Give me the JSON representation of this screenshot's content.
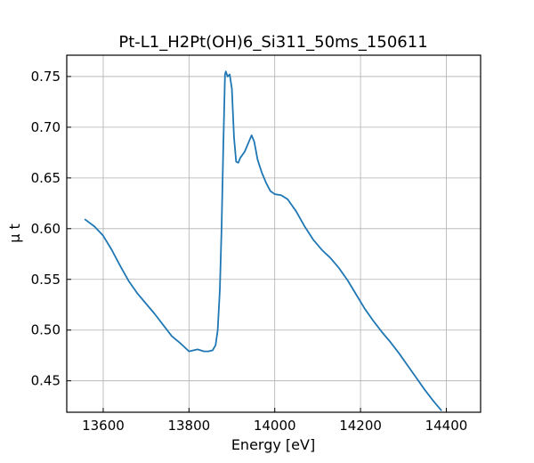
{
  "chart_data": {
    "type": "line",
    "title": "Pt-L1_H2Pt(OH)6_Si311_50ms_150611",
    "xlabel": "Energy [eV]",
    "ylabel": "μ t",
    "xlim": [
      13515,
      14480
    ],
    "ylim": [
      0.419,
      0.771
    ],
    "x_ticks": [
      13600,
      13800,
      14000,
      14200,
      14400
    ],
    "y_ticks": [
      0.45,
      0.5,
      0.55,
      0.6,
      0.65,
      0.7,
      0.75
    ],
    "x_tick_labels": [
      "13600",
      "13800",
      "14000",
      "14200",
      "14400"
    ],
    "y_tick_labels": [
      "0.45",
      "0.50",
      "0.55",
      "0.60",
      "0.65",
      "0.70",
      "0.75"
    ],
    "grid": true,
    "ticks_direction": "in",
    "series": [
      {
        "color": "#1f77b4",
        "points": [
          [
            13558,
            0.609
          ],
          [
            13580,
            0.602
          ],
          [
            13600,
            0.593
          ],
          [
            13620,
            0.579
          ],
          [
            13640,
            0.563
          ],
          [
            13660,
            0.548
          ],
          [
            13680,
            0.536
          ],
          [
            13700,
            0.526
          ],
          [
            13720,
            0.516
          ],
          [
            13740,
            0.505
          ],
          [
            13760,
            0.494
          ],
          [
            13780,
            0.487
          ],
          [
            13800,
            0.479
          ],
          [
            13820,
            0.481
          ],
          [
            13835,
            0.479
          ],
          [
            13845,
            0.479
          ],
          [
            13855,
            0.48
          ],
          [
            13862,
            0.485
          ],
          [
            13867,
            0.5
          ],
          [
            13872,
            0.54
          ],
          [
            13876,
            0.6
          ],
          [
            13880,
            0.68
          ],
          [
            13884,
            0.752
          ],
          [
            13886,
            0.755
          ],
          [
            13890,
            0.75
          ],
          [
            13895,
            0.752
          ],
          [
            13900,
            0.738
          ],
          [
            13905,
            0.69
          ],
          [
            13910,
            0.666
          ],
          [
            13915,
            0.665
          ],
          [
            13920,
            0.67
          ],
          [
            13930,
            0.676
          ],
          [
            13940,
            0.686
          ],
          [
            13946,
            0.692
          ],
          [
            13952,
            0.686
          ],
          [
            13960,
            0.668
          ],
          [
            13970,
            0.655
          ],
          [
            13980,
            0.645
          ],
          [
            13990,
            0.637
          ],
          [
            14000,
            0.634
          ],
          [
            14015,
            0.633
          ],
          [
            14030,
            0.629
          ],
          [
            14050,
            0.617
          ],
          [
            14070,
            0.602
          ],
          [
            14090,
            0.589
          ],
          [
            14110,
            0.579
          ],
          [
            14130,
            0.571
          ],
          [
            14150,
            0.561
          ],
          [
            14170,
            0.549
          ],
          [
            14190,
            0.535
          ],
          [
            14210,
            0.521
          ],
          [
            14230,
            0.509
          ],
          [
            14250,
            0.498
          ],
          [
            14270,
            0.488
          ],
          [
            14290,
            0.477
          ],
          [
            14310,
            0.465
          ],
          [
            14330,
            0.453
          ],
          [
            14350,
            0.441
          ],
          [
            14370,
            0.43
          ],
          [
            14388,
            0.421
          ]
        ]
      }
    ]
  }
}
